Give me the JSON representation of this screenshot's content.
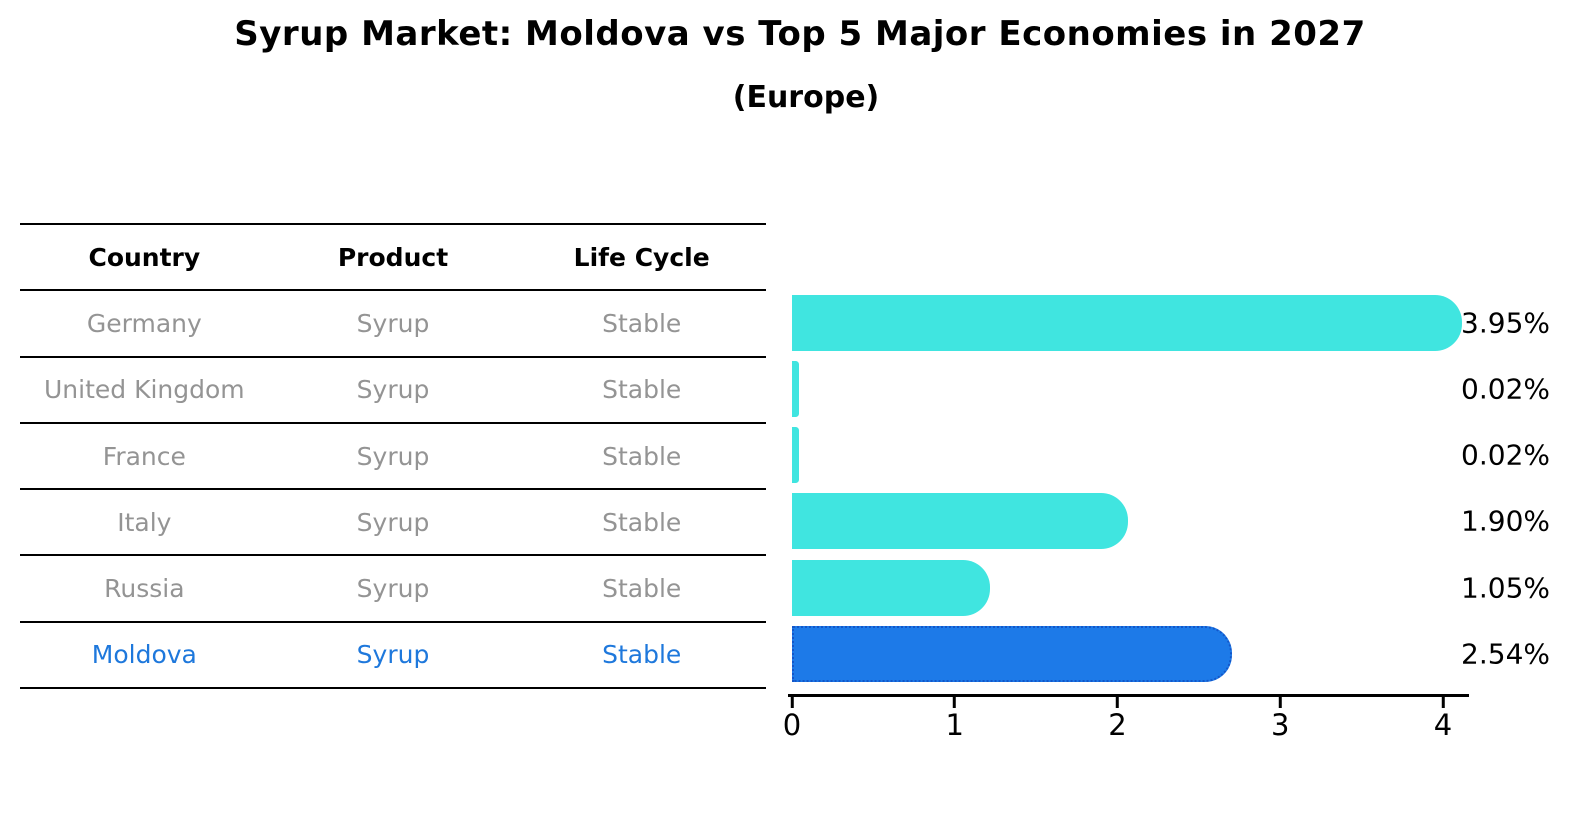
{
  "title": "Syrup Market: Moldova vs Top 5 Major Economies in 2027",
  "subtitle": "(Europe)",
  "table": {
    "headers": [
      "Country",
      "Product",
      "Life Cycle"
    ],
    "rows": [
      {
        "country": "Germany",
        "product": "Syrup",
        "life_cycle": "Stable"
      },
      {
        "country": "United Kingdom",
        "product": "Syrup",
        "life_cycle": "Stable"
      },
      {
        "country": "France",
        "product": "Syrup",
        "life_cycle": "Stable"
      },
      {
        "country": "Italy",
        "product": "Syrup",
        "life_cycle": "Stable"
      },
      {
        "country": "Russia",
        "product": "Syrup",
        "life_cycle": "Stable"
      },
      {
        "country": "Moldova",
        "product": "Syrup",
        "life_cycle": "Stable"
      }
    ]
  },
  "chart_data": {
    "type": "bar",
    "orientation": "horizontal",
    "categories": [
      "Germany",
      "United Kingdom",
      "France",
      "Italy",
      "Russia",
      "Moldova"
    ],
    "values": [
      3.95,
      0.02,
      0.02,
      1.9,
      1.05,
      2.54
    ],
    "value_labels": [
      "3.95%",
      "0.02%",
      "0.02%",
      "1.90%",
      "1.05%",
      "2.54%"
    ],
    "xticks": [
      "0",
      "1",
      "2",
      "3",
      "4"
    ],
    "xlim": [
      0,
      4.15
    ],
    "grid": false,
    "legend": false,
    "highlight_category": "Moldova",
    "highlight_index": 5,
    "bar_color": "#40e5e0",
    "highlight_color": "#1d7ae8",
    "highlight_border_color": "#1356c9"
  },
  "colors": {
    "accent_blue": "#1e78dc",
    "muted_text": "#949494",
    "bar_cyan": "#40e5e0",
    "bar_blue": "#1d7ae8"
  }
}
